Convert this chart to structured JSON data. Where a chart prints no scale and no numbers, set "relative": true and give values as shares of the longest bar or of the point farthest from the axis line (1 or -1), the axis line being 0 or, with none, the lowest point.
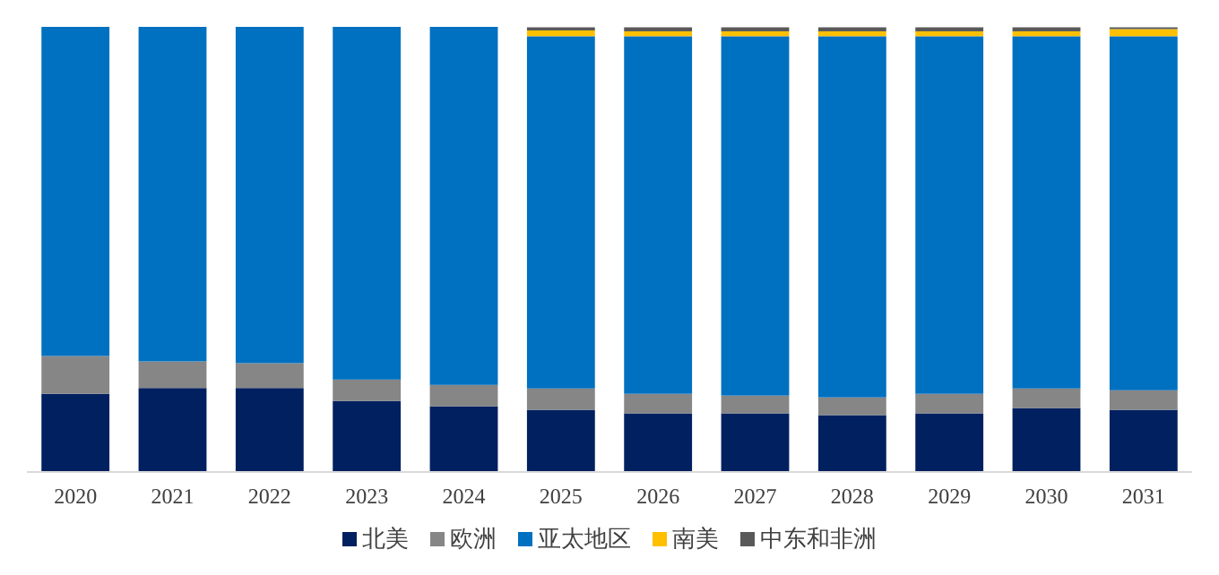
{
  "chart_data": {
    "type": "bar",
    "stacked": true,
    "relative": true,
    "legend": "bottom",
    "categories": [
      "2020",
      "2021",
      "2022",
      "2023",
      "2024",
      "2025",
      "2026",
      "2027",
      "2028",
      "2029",
      "2030",
      "2031"
    ],
    "series": [
      {
        "name": "北美",
        "color": "#002060",
        "values": [
          0.174,
          0.187,
          0.187,
          0.158,
          0.146,
          0.138,
          0.13,
          0.13,
          0.126,
          0.13,
          0.142,
          0.138
        ]
      },
      {
        "name": "欧洲",
        "color": "#868686",
        "values": [
          0.085,
          0.06,
          0.056,
          0.048,
          0.048,
          0.048,
          0.044,
          0.04,
          0.04,
          0.044,
          0.044,
          0.044
        ]
      },
      {
        "name": "亚太地区",
        "color": "#0070c0",
        "values": [
          0.741,
          0.753,
          0.757,
          0.794,
          0.806,
          0.793,
          0.805,
          0.809,
          0.813,
          0.805,
          0.793,
          0.797
        ]
      },
      {
        "name": "南美",
        "color": "#ffc000",
        "values": [
          0,
          0,
          0,
          0,
          0,
          0.013,
          0.011,
          0.011,
          0.011,
          0.011,
          0.011,
          0.016
        ]
      },
      {
        "name": "中东和非洲",
        "color": "#595959",
        "values": [
          0,
          0,
          0,
          0,
          0,
          0.007,
          0.009,
          0.009,
          0.009,
          0.009,
          0.009,
          0.004
        ]
      }
    ]
  }
}
